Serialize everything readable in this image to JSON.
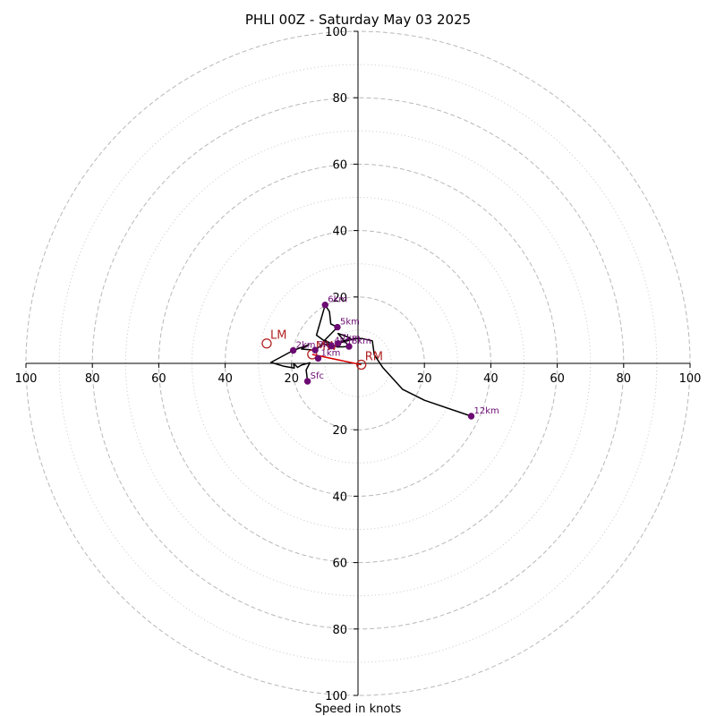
{
  "chart_data": {
    "type": "line",
    "title": "PHLI 00Z - Saturday May 03 2025",
    "xlabel": "Speed in knots",
    "ylabel": "",
    "xlim": [
      -100,
      100
    ],
    "ylim": [
      -100,
      100
    ],
    "rings_major": [
      20,
      40,
      60,
      80,
      100
    ],
    "rings_minor": [
      10,
      30,
      50,
      70,
      90
    ],
    "x_tick_labels": [
      "100",
      "80",
      "60",
      "40",
      "20",
      "20",
      "40",
      "60",
      "80",
      "100"
    ],
    "x_tick_values": [
      -100,
      -80,
      -60,
      -40,
      -20,
      20,
      40,
      60,
      80,
      100
    ],
    "y_tick_labels": [
      "100",
      "80",
      "60",
      "40",
      "20",
      "20",
      "40",
      "60",
      "80",
      "100"
    ],
    "y_tick_values": [
      100,
      80,
      60,
      40,
      20,
      -20,
      -40,
      -60,
      -80,
      -100
    ],
    "hodograph": {
      "color": "#000000",
      "points": [
        [
          -15.2,
          -5.4
        ],
        [
          -15.6,
          -2.0
        ],
        [
          -14.5,
          0.2
        ],
        [
          -17.0,
          -0.5
        ],
        [
          -18.2,
          -1.2
        ],
        [
          -19.4,
          0.0
        ],
        [
          -19.2,
          -1.4
        ],
        [
          -22.3,
          -0.9
        ],
        [
          -26.2,
          0.3
        ],
        [
          -19.5,
          3.9
        ],
        [
          -14.8,
          5.6
        ],
        [
          -17.0,
          4.3
        ],
        [
          -12.9,
          4.0
        ],
        [
          -10.5,
          5.9
        ],
        [
          -8.0,
          5.2
        ],
        [
          -12.5,
          8.5
        ],
        [
          -9.9,
          17.6
        ],
        [
          -8.6,
          15.6
        ],
        [
          -8.2,
          11.9
        ],
        [
          -6.2,
          10.9
        ],
        [
          -10.0,
          7.0
        ],
        [
          -6.2,
          4.9
        ],
        [
          -2.7,
          5.1
        ],
        [
          -6.0,
          9.0
        ],
        [
          -4.5,
          8.5
        ],
        [
          -2.3,
          7.6
        ],
        [
          -6.0,
          6.0
        ],
        [
          -0.7,
          7.5
        ],
        [
          1.2,
          7.5
        ],
        [
          4.3,
          6.8
        ],
        [
          4.9,
          2.6
        ],
        [
          7.5,
          -1.3
        ],
        [
          13.4,
          -7.8
        ],
        [
          20.0,
          -11.1
        ],
        [
          34.1,
          -15.9
        ]
      ]
    },
    "height_markers": {
      "color": "#6b0a72",
      "items": [
        {
          "label": "Sfc",
          "x": -15.2,
          "y": -5.4
        },
        {
          "label": "1km",
          "x": -12.0,
          "y": 1.5
        },
        {
          "label": "2km",
          "x": -19.5,
          "y": 3.9
        },
        {
          "label": "3km",
          "x": -12.9,
          "y": 4.0
        },
        {
          "label": "4km",
          "x": -8.0,
          "y": 5.2
        },
        {
          "label": "5km",
          "x": -6.2,
          "y": 10.9
        },
        {
          "label": "6km",
          "x": -9.9,
          "y": 17.6
        },
        {
          "label": "7km",
          "x": -6.0,
          "y": 6.0
        },
        {
          "label": "8km",
          "x": -2.7,
          "y": 5.1
        },
        {
          "label": "12km",
          "x": 34.1,
          "y": -15.9
        }
      ]
    },
    "motion_vectors": {
      "color": "#b22222",
      "items": [
        {
          "label": "LM",
          "x": -27.5,
          "y": 6.0
        },
        {
          "label": "MW",
          "x": -13.8,
          "y": 2.7
        },
        {
          "label": "RM",
          "x": 1.0,
          "y": -0.4
        }
      ],
      "shear_line": [
        [
          -13.8,
          2.7
        ],
        [
          1.0,
          -0.4
        ]
      ]
    }
  }
}
